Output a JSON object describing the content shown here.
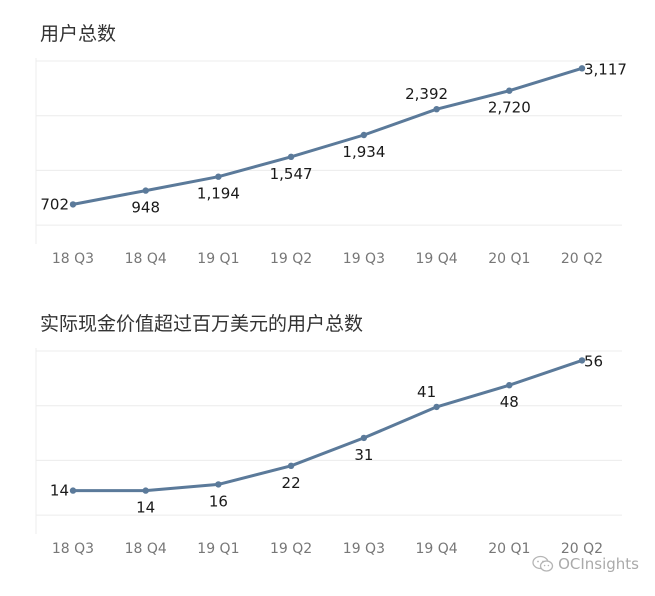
{
  "chart_data": [
    {
      "type": "line",
      "title": "用户总数",
      "categories": [
        "18 Q3",
        "18 Q4",
        "19 Q1",
        "19 Q2",
        "19 Q3",
        "19 Q4",
        "20 Q1",
        "20 Q2"
      ],
      "values": [
        702,
        948,
        1194,
        1547,
        1934,
        2392,
        2720,
        3117
      ],
      "data_labels": [
        "702",
        "948",
        "1,194",
        "1,547",
        "1,934",
        "2,392",
        "2,720",
        "3,117"
      ],
      "label_positions": [
        "left",
        "below",
        "below",
        "below",
        "below",
        "above",
        "below",
        "right"
      ],
      "ylim": [
        0,
        3300
      ],
      "grid": true,
      "line_color": "#5b7a9a",
      "grid_color": "#ececec"
    },
    {
      "type": "line",
      "title": "实际现金价值超过百万美元的用户总数",
      "categories": [
        "18 Q3",
        "18 Q4",
        "19 Q1",
        "19 Q2",
        "19 Q3",
        "19 Q4",
        "20 Q1",
        "20 Q2"
      ],
      "values": [
        14,
        14,
        16,
        22,
        31,
        41,
        48,
        56
      ],
      "data_labels": [
        "14",
        "14",
        "16",
        "22",
        "31",
        "41",
        "48",
        "56"
      ],
      "label_positions": [
        "left",
        "below",
        "below",
        "below",
        "below",
        "above",
        "below",
        "right"
      ],
      "ylim": [
        0,
        60
      ],
      "grid": true,
      "line_color": "#5b7a9a",
      "grid_color": "#ececec"
    }
  ],
  "watermark": {
    "icon": "wechat-icon",
    "text": "OCInsights"
  }
}
